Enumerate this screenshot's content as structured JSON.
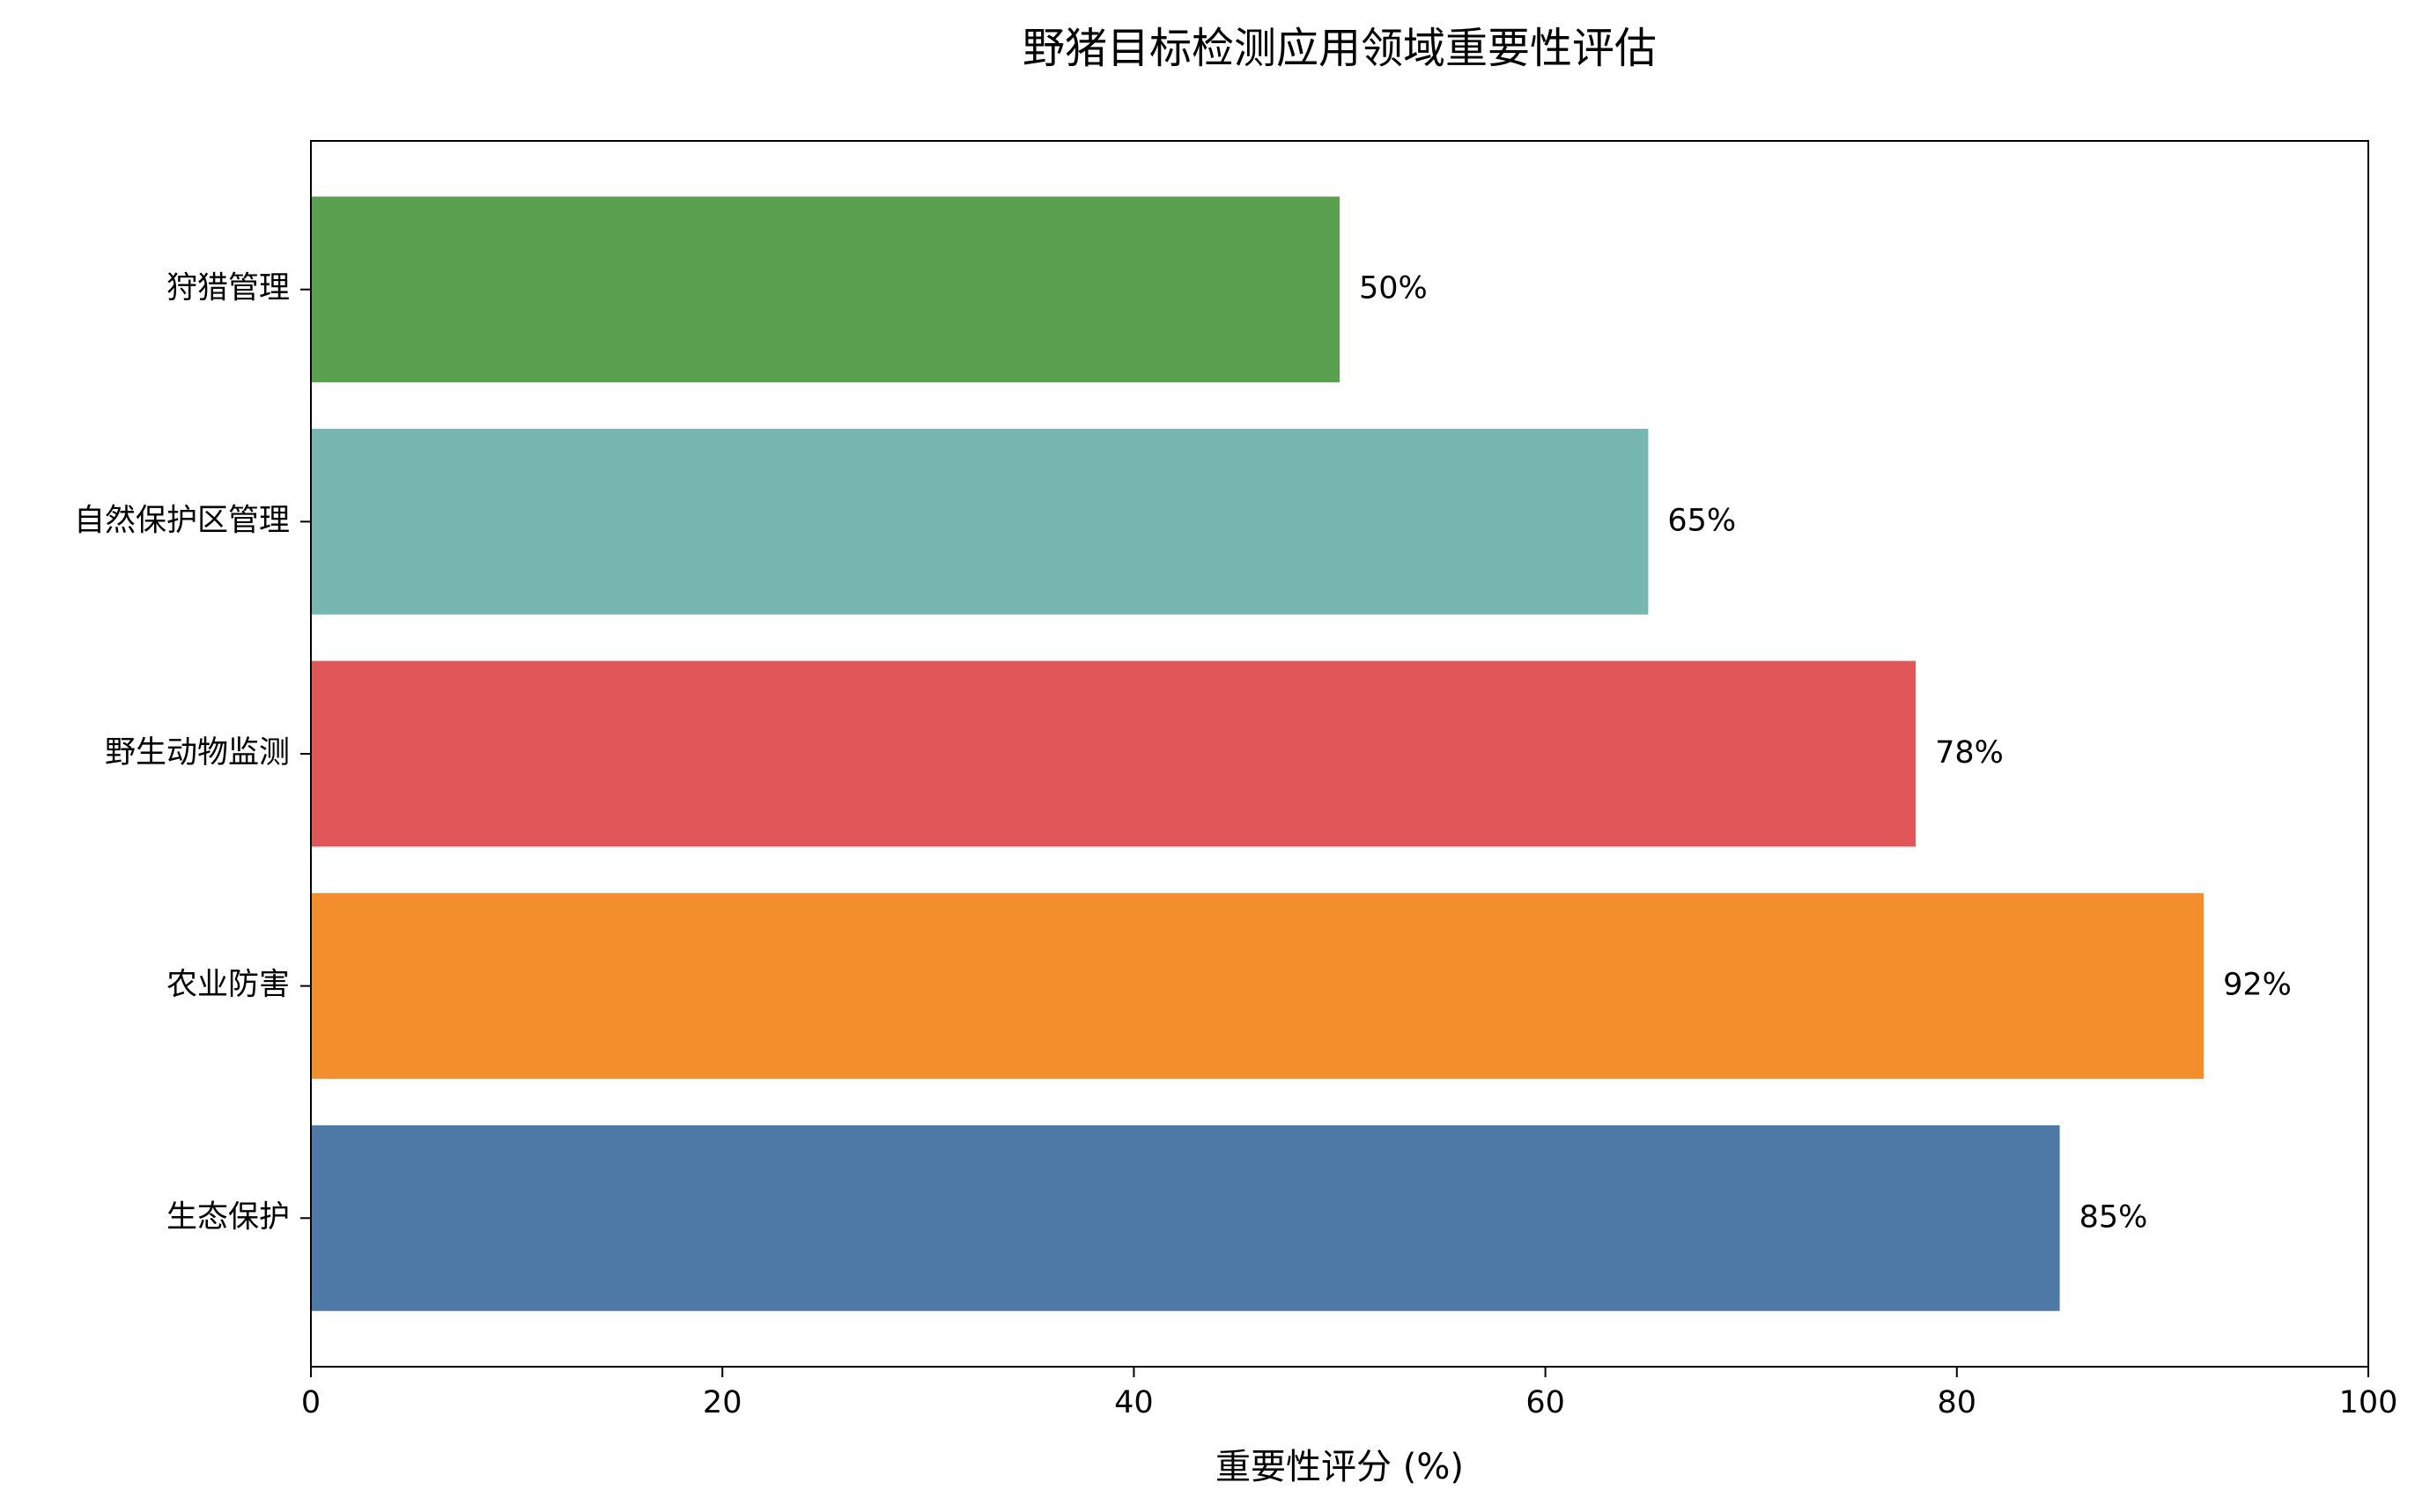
{
  "chart_data": {
    "type": "barh",
    "title": "野猪目标检测应用领域重要性评估",
    "xlabel": "重要性评分 (%)",
    "categories": [
      "生态保护",
      "农业防害",
      "野生动物监测",
      "自然保护区管理",
      "狩猎管理"
    ],
    "values": [
      85,
      92,
      78,
      65,
      50
    ],
    "value_labels": [
      "85%",
      "92%",
      "78%",
      "65%",
      "50%"
    ],
    "colors": [
      "#4e79a7",
      "#f28e2b",
      "#e15759",
      "#76b7b2",
      "#59a14f"
    ],
    "xlim": [
      0,
      100
    ],
    "xticks": [
      0,
      20,
      40,
      60,
      80,
      100
    ],
    "grid": false
  }
}
